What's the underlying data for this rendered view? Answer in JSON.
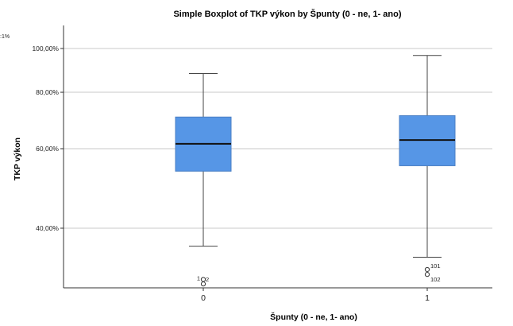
{
  "chart_data": {
    "type": "boxplot",
    "title": "Simple Boxplot of TKP výkon by Špunty (0 - ne, 1- ano)",
    "xlabel": "Špunty (0 - ne, 1- ano)",
    "ylabel": "TKP výkon",
    "corner_text": ":1%",
    "categories": [
      "0",
      "1"
    ],
    "y_scale": "log",
    "y_ticks": [
      40,
      60,
      80,
      100
    ],
    "y_tick_labels": [
      "40,00%",
      "60,00%",
      "80,00%",
      "100,00%"
    ],
    "ylim": [
      28,
      120
    ],
    "grid": true,
    "box_color": "#5696e6",
    "boxes": [
      {
        "category": "0",
        "whisker_low": 36.5,
        "q1": 53.5,
        "median": 61.5,
        "q3": 70.5,
        "whisker_high": 88,
        "outliers": [
          {
            "value": 30.8,
            "label": "1"
          },
          {
            "value": 30.1,
            "label": "2"
          }
        ]
      },
      {
        "category": "1",
        "whisker_low": 34.5,
        "q1": 55,
        "median": 62.7,
        "q3": 71,
        "whisker_high": 96.5,
        "outliers": [
          {
            "value": 32.4,
            "label": "101"
          },
          {
            "value": 31.6,
            "label": "102"
          }
        ]
      }
    ]
  }
}
